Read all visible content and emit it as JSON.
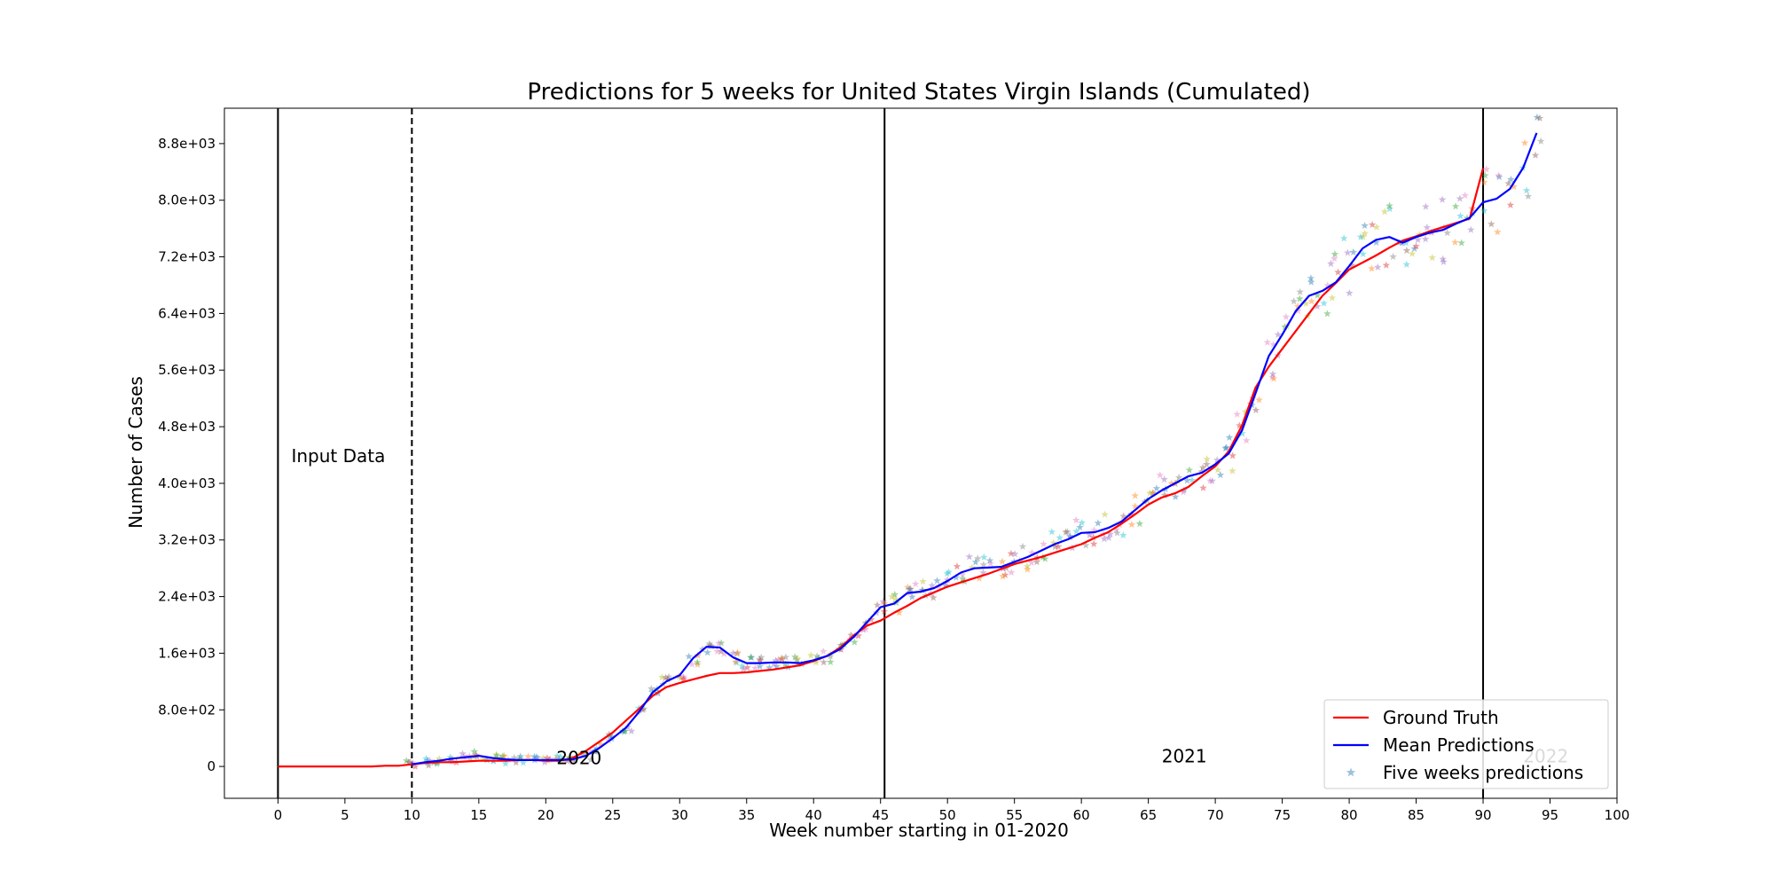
{
  "chart_data": {
    "type": "line",
    "title": "Predictions for 5 weeks for United States Virgin Islands (Cumulated)",
    "xlabel": "Week number starting in 01-2020",
    "ylabel": "Number of Cases",
    "xlim": [
      -4,
      100
    ],
    "ylim": [
      -450,
      9300
    ],
    "x_ticks": [
      0,
      5,
      10,
      15,
      20,
      25,
      30,
      35,
      40,
      45,
      50,
      55,
      60,
      65,
      70,
      75,
      80,
      85,
      90,
      95,
      100
    ],
    "y_ticks": [
      {
        "value": 0,
        "label": "0"
      },
      {
        "value": 800,
        "label": "8.0e+02"
      },
      {
        "value": 1600,
        "label": "1.6e+03"
      },
      {
        "value": 2400,
        "label": "2.4e+03"
      },
      {
        "value": 3200,
        "label": "3.2e+03"
      },
      {
        "value": 4000,
        "label": "4.0e+03"
      },
      {
        "value": 4800,
        "label": "4.8e+03"
      },
      {
        "value": 5600,
        "label": "5.6e+03"
      },
      {
        "value": 6400,
        "label": "6.4e+03"
      },
      {
        "value": 7200,
        "label": "7.2e+03"
      },
      {
        "value": 8000,
        "label": "8.0e+03"
      },
      {
        "value": 8800,
        "label": "8.8e+03"
      }
    ],
    "grid": false,
    "legend_position": "bottom-right",
    "vertical_lines": [
      {
        "x": 0,
        "style": "solid"
      },
      {
        "x": 10,
        "style": "dashed"
      },
      {
        "x": 45.3,
        "style": "solid"
      },
      {
        "x": 90,
        "style": "solid"
      }
    ],
    "annotations": [
      {
        "text": "Input Data",
        "x": 1,
        "y": 4300
      },
      {
        "text": "2020",
        "x": 20.8,
        "y": 30
      },
      {
        "text": "2021",
        "x": 66,
        "y": 60
      },
      {
        "text": "2022",
        "x": 93,
        "y": 60
      }
    ],
    "series": [
      {
        "name": "Ground Truth",
        "color": "#ff0000",
        "x": [
          0,
          1,
          2,
          3,
          4,
          5,
          6,
          7,
          8,
          9,
          10,
          11,
          12,
          13,
          14,
          15,
          16,
          17,
          18,
          19,
          20,
          21,
          22,
          23,
          24,
          25,
          26,
          27,
          28,
          29,
          30,
          31,
          32,
          33,
          34,
          35,
          36,
          37,
          38,
          39,
          40,
          41,
          42,
          43,
          44,
          45,
          46,
          47,
          48,
          49,
          50,
          51,
          52,
          53,
          54,
          55,
          56,
          57,
          58,
          59,
          60,
          61,
          62,
          63,
          64,
          65,
          66,
          67,
          68,
          69,
          70,
          71,
          72,
          73,
          74,
          75,
          76,
          77,
          78,
          79,
          80,
          81,
          82,
          83,
          84,
          85,
          86,
          87,
          88,
          89,
          90
        ],
        "y": [
          0,
          0,
          0,
          0,
          0,
          0,
          0,
          0,
          10,
          10,
          30,
          50,
          60,
          60,
          70,
          80,
          80,
          80,
          90,
          90,
          80,
          80,
          120,
          220,
          350,
          480,
          650,
          820,
          1000,
          1120,
          1180,
          1230,
          1280,
          1320,
          1320,
          1330,
          1350,
          1370,
          1400,
          1430,
          1490,
          1560,
          1680,
          1850,
          1990,
          2060,
          2170,
          2270,
          2380,
          2460,
          2540,
          2600,
          2660,
          2720,
          2790,
          2860,
          2910,
          2960,
          3020,
          3080,
          3140,
          3230,
          3310,
          3430,
          3560,
          3700,
          3800,
          3860,
          3950,
          4100,
          4240,
          4450,
          4820,
          5350,
          5650,
          5900,
          6150,
          6400,
          6650,
          6830,
          7020,
          7120,
          7220,
          7330,
          7430,
          7490,
          7560,
          7620,
          7680,
          7740,
          8450
        ]
      },
      {
        "name": "Mean Predictions",
        "color": "#0000ff",
        "x": [
          10,
          11,
          12,
          13,
          14,
          15,
          16,
          17,
          18,
          19,
          20,
          21,
          22,
          23,
          24,
          25,
          26,
          27,
          28,
          29,
          30,
          31,
          32,
          33,
          34,
          35,
          36,
          37,
          38,
          39,
          40,
          41,
          42,
          43,
          44,
          45,
          46,
          47,
          48,
          49,
          50,
          51,
          52,
          53,
          54,
          55,
          56,
          57,
          58,
          59,
          60,
          61,
          62,
          63,
          64,
          65,
          66,
          67,
          68,
          69,
          70,
          71,
          72,
          73,
          74,
          75,
          76,
          77,
          78,
          79,
          80,
          81,
          82,
          83,
          84,
          85,
          86,
          87,
          88,
          89,
          90,
          91,
          92,
          93,
          94
        ],
        "y": [
          30,
          60,
          80,
          110,
          130,
          150,
          120,
          100,
          90,
          90,
          90,
          90,
          100,
          150,
          260,
          400,
          550,
          780,
          1050,
          1200,
          1290,
          1530,
          1690,
          1680,
          1540,
          1460,
          1460,
          1470,
          1470,
          1460,
          1500,
          1560,
          1660,
          1830,
          2040,
          2250,
          2300,
          2450,
          2470,
          2520,
          2620,
          2740,
          2800,
          2810,
          2820,
          2890,
          2960,
          3050,
          3140,
          3210,
          3300,
          3310,
          3370,
          3460,
          3620,
          3780,
          3900,
          4000,
          4100,
          4150,
          4270,
          4420,
          4750,
          5270,
          5800,
          6100,
          6430,
          6650,
          6720,
          6840,
          7070,
          7320,
          7440,
          7480,
          7400,
          7480,
          7540,
          7580,
          7670,
          7750,
          7970,
          8020,
          8160,
          8460,
          8950
        ]
      }
    ],
    "scatter_series": {
      "name": "Five weeks predictions",
      "marker": "star",
      "colors": [
        "#1f77b4",
        "#ff7f0e",
        "#2ca02c",
        "#d62728",
        "#9467bd",
        "#8c564b",
        "#e377c2",
        "#7f7f7f",
        "#bcbd22",
        "#17becf"
      ]
    }
  }
}
